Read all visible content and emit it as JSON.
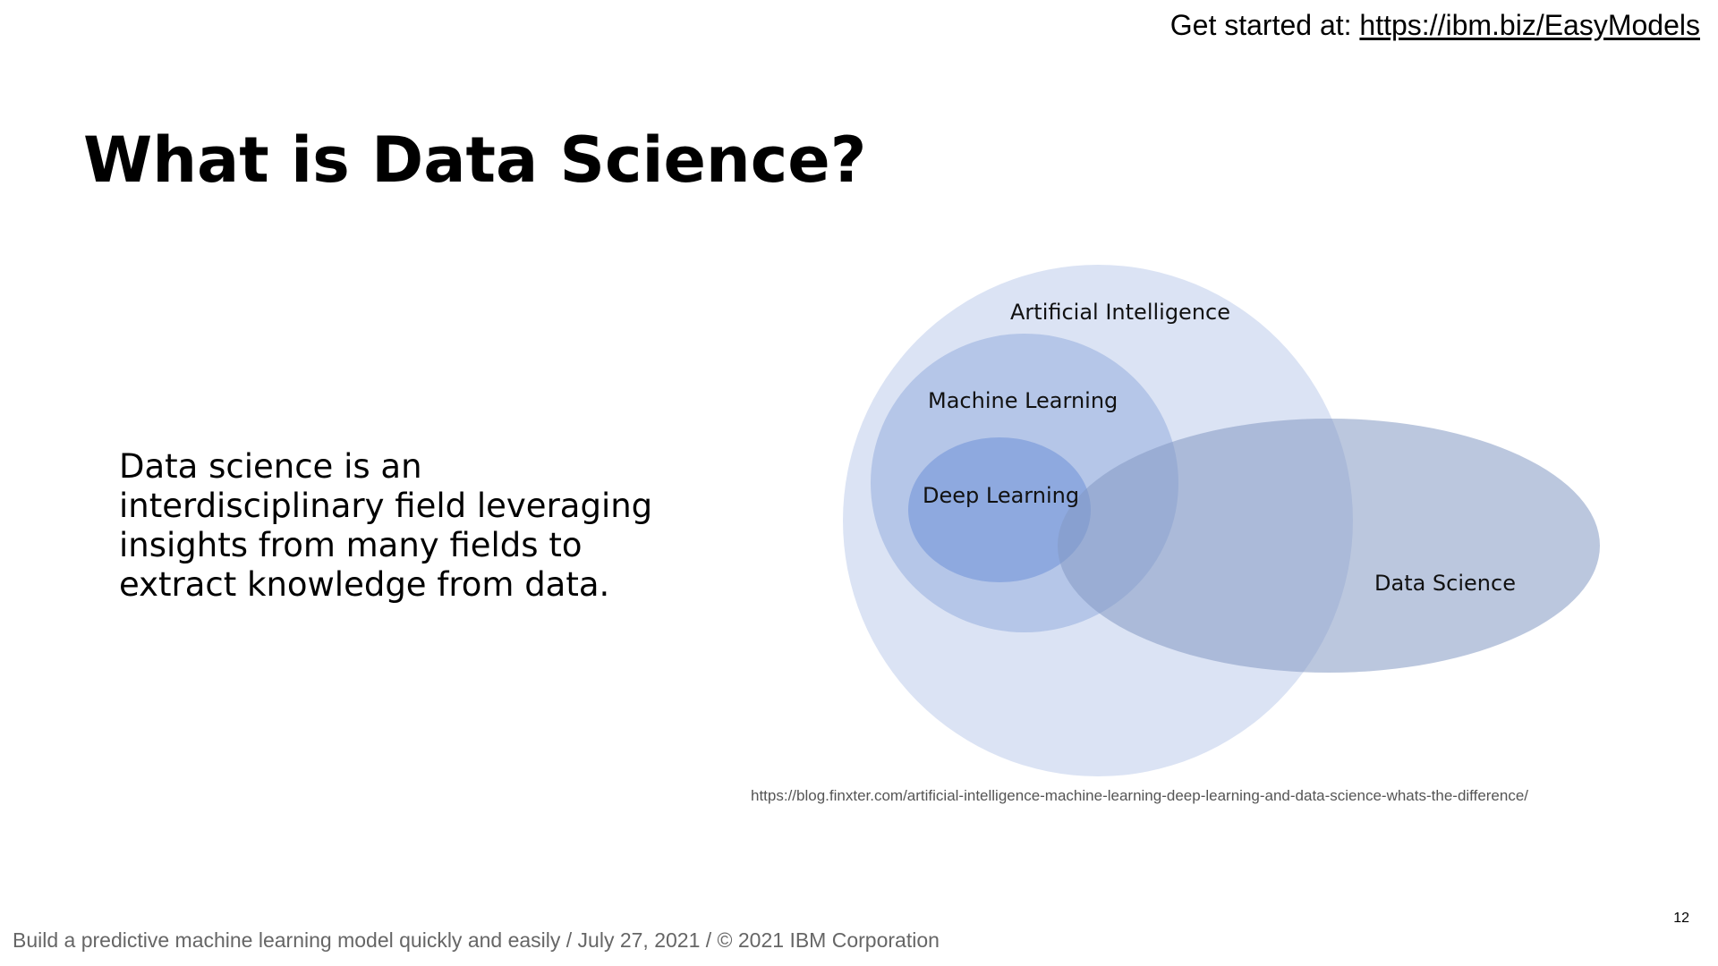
{
  "header": {
    "prefix": "Get started at: ",
    "link_text": "https://ibm.biz/EasyModels"
  },
  "slide": {
    "title": "What is Data Science?",
    "body": "Data science is an interdisciplinary field leveraging insights from many fields to extract knowledge from data."
  },
  "diagram": {
    "sets": [
      {
        "label": "Artificial Intelligence",
        "color": "#dbe3f4"
      },
      {
        "label": "Machine Learning",
        "color": "#b5c6e8"
      },
      {
        "label": "Deep Learning",
        "color": "#8ea9df"
      },
      {
        "label": "Data Science",
        "color": "#9fb1d3"
      }
    ],
    "source": "https://blog.finxter.com/artificial-intelligence-machine-learning-deep-learning-and-data-science-whats-the-difference/"
  },
  "footer": {
    "text": "Build a predictive machine learning model quickly and easily / July 27, 2021 / © 2021 IBM Corporation",
    "page_number": "12"
  }
}
